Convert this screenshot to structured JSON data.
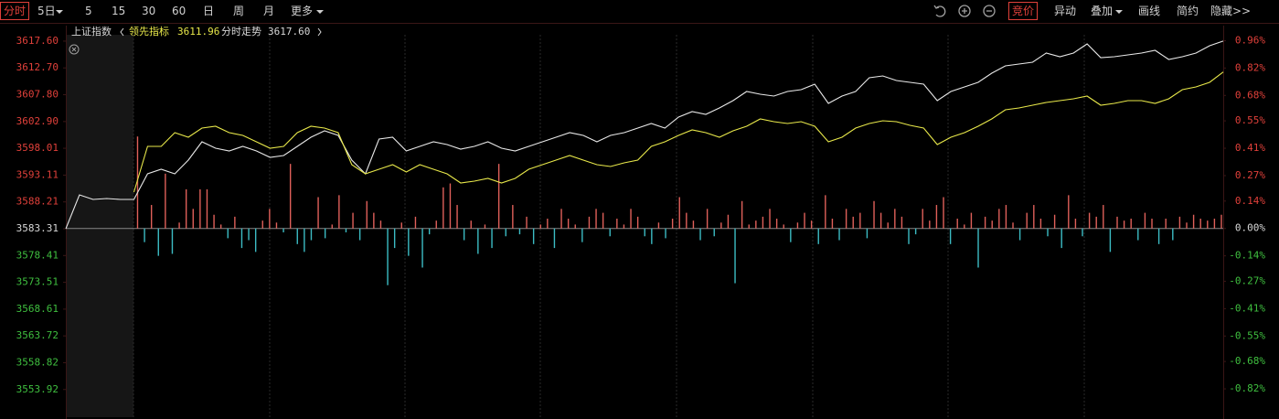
{
  "toolbar": {
    "left": [
      "分时",
      "5日",
      "5",
      "15",
      "30",
      "60",
      "日",
      "周",
      "月",
      "更多"
    ],
    "right": [
      "竞价",
      "异动",
      "叠加",
      "画线",
      "简约",
      "隐藏>>"
    ]
  },
  "legend": {
    "index_name": "上证指数",
    "lead_value": "3611.96",
    "trend_value": "3617.60"
  },
  "chart_data": {
    "type": "line",
    "ylim": [
      3549.03,
      3618.76
    ],
    "yticks": [
      {
        "value": 3617.6,
        "label": "3617.60"
      },
      {
        "value": 3612.7,
        "label": "3612.70"
      },
      {
        "value": 3607.8,
        "label": "3607.80"
      },
      {
        "value": 3602.9,
        "label": "3602.90"
      },
      3598.01,
      3593.11,
      3588.21,
      3583.31,
      3578.41,
      3573.51,
      3568.61,
      3563.72,
      3558.82,
      3553.92
    ],
    "y2lim": [
      -0.96,
      0.99
    ],
    "y2ticks": [
      {
        "value": 0.96,
        "label": "0.96%"
      },
      {
        "value": 0.82,
        "label": "0.82%"
      },
      {
        "value": 0.68,
        "label": "0.68%"
      },
      {
        "value": 0.55,
        "label": "0.55%"
      },
      {
        "value": 0.41,
        "label": "0.41%"
      },
      {
        "value": 0.27,
        "label": "0.27%"
      },
      {
        "value": 0.14,
        "label": "0.14%"
      },
      {
        "value": 0,
        "label": "0.00%"
      },
      {
        "value": -0.14,
        "label": "-0.14%"
      },
      {
        "value": -0.27,
        "label": "-0.27%"
      },
      {
        "value": -0.41,
        "label": "-0.41%"
      },
      {
        "value": -0.55,
        "label": "-0.55%"
      },
      {
        "value": -0.68,
        "label": "-0.68%"
      },
      {
        "value": -0.82,
        "label": "-0.82%"
      }
    ],
    "series": [
      {
        "name": "分时走势",
        "color": "#e8e8e8",
        "values": [
          3583.31,
          3589.5,
          3588.66,
          3588.83,
          3588.66,
          3588.66,
          3593.34,
          3594.18,
          3593.34,
          3595.85,
          3599.19,
          3598.02,
          3597.52,
          3598.36,
          3597.52,
          3596.35,
          3596.69,
          3598.36,
          3600.03,
          3601.2,
          3600.36,
          3595.85,
          3593.34,
          3599.7,
          3600.03,
          3597.52,
          3598.36,
          3599.19,
          3598.69,
          3597.86,
          3598.36,
          3599.19,
          3598.02,
          3597.52,
          3598.36,
          3599.19,
          3600.03,
          3600.87,
          3600.36,
          3599.19,
          3600.36,
          3600.87,
          3601.7,
          3602.54,
          3601.7,
          3603.71,
          3604.71,
          3604.21,
          3605.38,
          3606.72,
          3608.39,
          3607.89,
          3607.55,
          3608.39,
          3608.72,
          3609.73,
          3606.22,
          3607.55,
          3608.39,
          3610.9,
          3611.23,
          3610.4,
          3610.06,
          3609.73,
          3606.72,
          3608.39,
          3609.23,
          3610.06,
          3611.73,
          3613.07,
          3613.41,
          3613.74,
          3615.41,
          3614.74,
          3615.41,
          3617.08,
          3614.58,
          3614.74,
          3615.08,
          3615.41,
          3615.91,
          3614.24,
          3614.74,
          3615.41,
          3616.75,
          3617.6
        ]
      },
      {
        "name": "领先指标",
        "color": "#e8e84a",
        "values": [
          null,
          null,
          null,
          null,
          null,
          3590.0,
          3598.36,
          3598.36,
          3600.87,
          3600.03,
          3601.7,
          3602.04,
          3600.87,
          3600.36,
          3599.19,
          3598.02,
          3598.36,
          3600.87,
          3602.04,
          3601.7,
          3600.87,
          3595.01,
          3593.34,
          3594.18,
          3595.01,
          3593.68,
          3595.01,
          3594.18,
          3593.34,
          3591.67,
          3592.0,
          3592.51,
          3591.67,
          3592.51,
          3594.18,
          3595.01,
          3595.85,
          3596.69,
          3595.85,
          3595.01,
          3594.68,
          3595.35,
          3595.85,
          3598.36,
          3599.19,
          3600.36,
          3601.37,
          3600.87,
          3600.03,
          3601.2,
          3602.04,
          3603.37,
          3602.87,
          3602.54,
          3602.87,
          3602.04,
          3599.19,
          3600.03,
          3601.7,
          3602.54,
          3603.04,
          3602.87,
          3602.2,
          3601.7,
          3598.69,
          3600.03,
          3600.87,
          3602.04,
          3603.37,
          3605.05,
          3605.38,
          3605.88,
          3606.38,
          3606.72,
          3607.05,
          3607.55,
          3605.88,
          3606.22,
          3606.72,
          3606.72,
          3606.22,
          3607.05,
          3608.72,
          3609.23,
          3610.06,
          3611.96
        ]
      }
    ],
    "bars": {
      "axis": "y2",
      "up_color": "#e0605a",
      "down_color": "#3cbcc4",
      "values": [
        0.47,
        -0.07,
        0.12,
        -0.14,
        0.28,
        -0.13,
        0.03,
        0.2,
        0.1,
        0.2,
        0.2,
        0.07,
        0.02,
        -0.05,
        0.06,
        -0.1,
        -0.06,
        -0.12,
        0.04,
        0.1,
        0.03,
        -0.02,
        0.33,
        -0.08,
        -0.12,
        -0.06,
        0.16,
        -0.05,
        0.02,
        0.17,
        -0.02,
        0.08,
        -0.06,
        0.14,
        0.08,
        0.04,
        -0.29,
        -0.1,
        0.03,
        -0.14,
        0.06,
        -0.2,
        -0.03,
        0.04,
        0.21,
        0.23,
        0.12,
        -0.06,
        0.04,
        -0.13,
        0.02,
        -0.1,
        0.33,
        -0.04,
        0.12,
        -0.03,
        0.06,
        -0.08,
        0.02,
        0.05,
        -0.1,
        0.1,
        0.05,
        0.02,
        -0.07,
        0.06,
        0.1,
        0.08,
        -0.04,
        0.05,
        0.02,
        0.1,
        0.06,
        -0.04,
        -0.08,
        0.03,
        -0.05,
        0.05,
        0.16,
        0.08,
        0.04,
        -0.06,
        0.1,
        -0.04,
        0.03,
        0.07,
        -0.28,
        0.14,
        0.02,
        0.04,
        0.06,
        0.1,
        0.05,
        0.02,
        -0.07,
        0.03,
        0.08,
        0.04,
        -0.08,
        0.17,
        0.05,
        -0.06,
        0.1,
        0.06,
        0.08,
        -0.05,
        0.14,
        0.08,
        0.03,
        0.1,
        0.06,
        -0.08,
        -0.03,
        0.1,
        0.04,
        0.12,
        0.16,
        -0.08,
        0.05,
        0.02,
        0.08,
        -0.2,
        0.06,
        0.04,
        0.1,
        0.12,
        0.03,
        -0.06,
        0.08,
        0.12,
        0.05,
        -0.04,
        0.07,
        -0.1,
        0.17,
        0.05,
        -0.04,
        0.08,
        0.06,
        0.12,
        -0.12,
        0.06,
        0.04,
        0.05,
        -0.06,
        0.08,
        0.05,
        -0.08,
        0.05,
        -0.06,
        0.06,
        0.03,
        0.07,
        0.05,
        0.04,
        0.05,
        0.07
      ]
    }
  }
}
